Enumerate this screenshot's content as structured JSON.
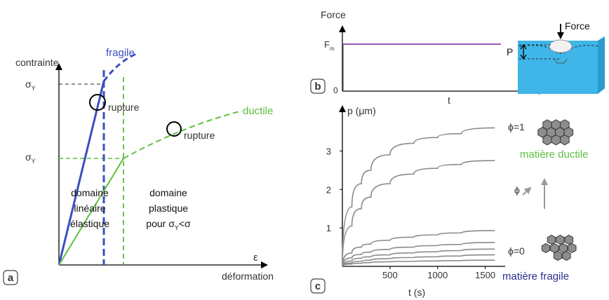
{
  "panel_a": {
    "badge": "a",
    "y_axis_label": "contrainte",
    "x_axis_symbol": "ε",
    "x_axis_label": "déformation",
    "sigma": "σ",
    "sigma_sub": "Y",
    "fragile_label": "fragile",
    "ductile_label": "ductile",
    "rupture_fragile": "rupture",
    "rupture_ductile": "rupture",
    "domain_elastic": [
      "domaine",
      "linéaire",
      "élastique"
    ],
    "domain_plastic": [
      "domaine",
      "plastique"
    ],
    "domain_plastic_cond_prefix": "pour σ",
    "domain_plastic_cond_sub": "Y",
    "domain_plastic_cond_suffix": "<σ",
    "colors": {
      "fragile": "#3b4fbf",
      "ductile": "#5cbf3f"
    }
  },
  "panel_b": {
    "badge": "b",
    "y_axis_label": "Force",
    "fm_label": "F",
    "fm_sub": "m",
    "zero_label": "0",
    "x_axis_label": "t",
    "inset_force_label": "Force",
    "inset_p_label": "P",
    "colors": {
      "force_line": "#9b59b6",
      "sample": "#3fb5e8"
    }
  },
  "panel_c": {
    "badge": "c",
    "y_axis_label": "p (μm)",
    "x_axis_label": "t (s)",
    "phi_top": "ϕ=1",
    "phi_bottom": "ϕ=0",
    "phi_arrow": "ϕ",
    "ductile_label": "matière ductile",
    "fragile_label": "matière fragile",
    "colors": {
      "ductile": "#5cbf3f",
      "fragile": "#2c2f8f",
      "curves": "#8a8a8a"
    },
    "chart_data": {
      "type": "line",
      "xlabel": "t (s)",
      "ylabel": "p (μm)",
      "xlim": [
        0,
        1650
      ],
      "ylim": [
        0,
        3.9
      ],
      "x_ticks": [
        500,
        1000,
        1500
      ],
      "y_ticks": [
        1,
        2,
        3
      ],
      "x": [
        0,
        100,
        200,
        300,
        500,
        750,
        1000,
        1250,
        1600
      ],
      "series": [
        {
          "values": [
            0,
            1.55,
            2.15,
            2.5,
            2.9,
            3.2,
            3.35,
            3.45,
            3.6
          ]
        },
        {
          "values": [
            0,
            1.05,
            1.5,
            1.8,
            2.15,
            2.4,
            2.55,
            2.65,
            2.75
          ]
        },
        {
          "values": [
            0,
            0.35,
            0.5,
            0.58,
            0.68,
            0.76,
            0.82,
            0.87,
            0.93
          ]
        },
        {
          "values": [
            0,
            0.22,
            0.31,
            0.37,
            0.44,
            0.5,
            0.54,
            0.57,
            0.62
          ]
        },
        {
          "values": [
            0,
            0.14,
            0.21,
            0.25,
            0.3,
            0.35,
            0.38,
            0.41,
            0.45
          ]
        },
        {
          "values": [
            0,
            0.09,
            0.13,
            0.16,
            0.2,
            0.23,
            0.25,
            0.27,
            0.3
          ]
        },
        {
          "values": [
            0,
            0.06,
            0.08,
            0.1,
            0.12,
            0.13,
            0.14,
            0.15,
            0.16
          ]
        }
      ]
    }
  }
}
